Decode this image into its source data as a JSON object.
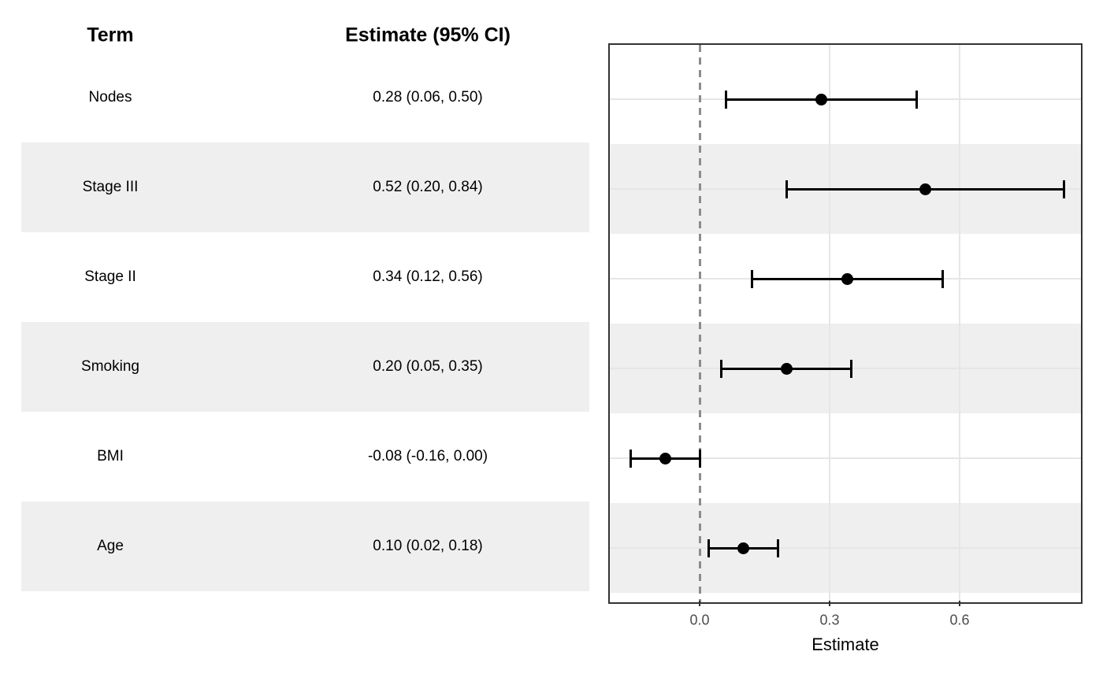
{
  "table": {
    "headers": {
      "term": "Term",
      "estimate": "Estimate (95% CI)"
    },
    "rows": [
      {
        "term": "Nodes",
        "estimate_label": "0.28 (0.06, 0.50)",
        "striped": false
      },
      {
        "term": "Stage III",
        "estimate_label": "0.52 (0.20, 0.84)",
        "striped": true
      },
      {
        "term": "Stage II",
        "estimate_label": "0.34 (0.12, 0.56)",
        "striped": false
      },
      {
        "term": "Smoking",
        "estimate_label": "0.20 (0.05, 0.35)",
        "striped": true
      },
      {
        "term": "BMI",
        "estimate_label": "-0.08 (-0.16, 0.00)",
        "striped": false
      },
      {
        "term": "Age",
        "estimate_label": "0.10 (0.02, 0.18)",
        "striped": true
      }
    ]
  },
  "chart_data": {
    "type": "scatter",
    "subtype": "forest-plot",
    "title": "",
    "xlabel": "Estimate",
    "ylabel": "",
    "categories": [
      "Nodes",
      "Stage III",
      "Stage II",
      "Smoking",
      "BMI",
      "Age"
    ],
    "series": [
      {
        "name": "Nodes",
        "estimate": 0.28,
        "conf_low": 0.06,
        "conf_high": 0.5
      },
      {
        "name": "Stage III",
        "estimate": 0.52,
        "conf_low": 0.2,
        "conf_high": 0.84
      },
      {
        "name": "Stage II",
        "estimate": 0.34,
        "conf_low": 0.12,
        "conf_high": 0.56
      },
      {
        "name": "Smoking",
        "estimate": 0.2,
        "conf_low": 0.05,
        "conf_high": 0.35
      },
      {
        "name": "BMI",
        "estimate": -0.08,
        "conf_low": -0.16,
        "conf_high": 0.0
      },
      {
        "name": "Age",
        "estimate": 0.1,
        "conf_low": 0.02,
        "conf_high": 0.18
      }
    ],
    "xlim": [
      -0.2073,
      0.88
    ],
    "x_tick_values": [
      0.0,
      0.3,
      0.6
    ],
    "x_tick_labels": [
      "0.0",
      "0.3",
      "0.6"
    ],
    "reference_line_x": 0,
    "grid": true,
    "legend": false
  },
  "colors": {
    "stripe": "#efefef",
    "grid": "#e6e6e6",
    "reference_line": "#8c8c8c",
    "panel_border": "#333333",
    "point": "#000000",
    "tick_text": "#4d4d4d",
    "text": "#000000"
  }
}
